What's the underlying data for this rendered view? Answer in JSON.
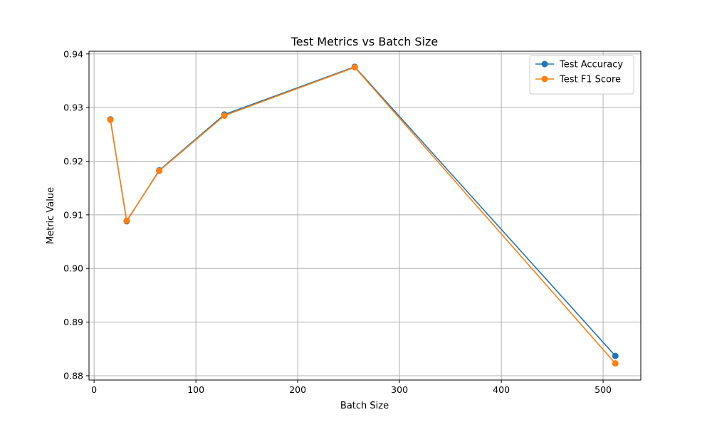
{
  "chart_data": {
    "type": "line",
    "title": "Test Metrics vs Batch Size",
    "xlabel": "Batch Size",
    "ylabel": "Metric Value",
    "xlim": [
      -5,
      537
    ],
    "ylim": [
      0.8792,
      0.9405
    ],
    "xticks": [
      0,
      100,
      200,
      300,
      400,
      500
    ],
    "yticks": [
      0.88,
      0.89,
      0.9,
      0.91,
      0.92,
      0.93,
      0.94
    ],
    "grid": true,
    "legend_position": "top-right",
    "x": [
      16,
      32,
      64,
      128,
      256,
      512
    ],
    "series": [
      {
        "name": "Test Accuracy",
        "color": "#1f77b4",
        "values": [
          0.9278,
          0.9088,
          0.9183,
          0.9287,
          0.9376,
          0.8837
        ]
      },
      {
        "name": "Test F1 Score",
        "color": "#ff7f0e",
        "values": [
          0.9277,
          0.9089,
          0.9182,
          0.9285,
          0.9375,
          0.8823
        ]
      }
    ]
  }
}
